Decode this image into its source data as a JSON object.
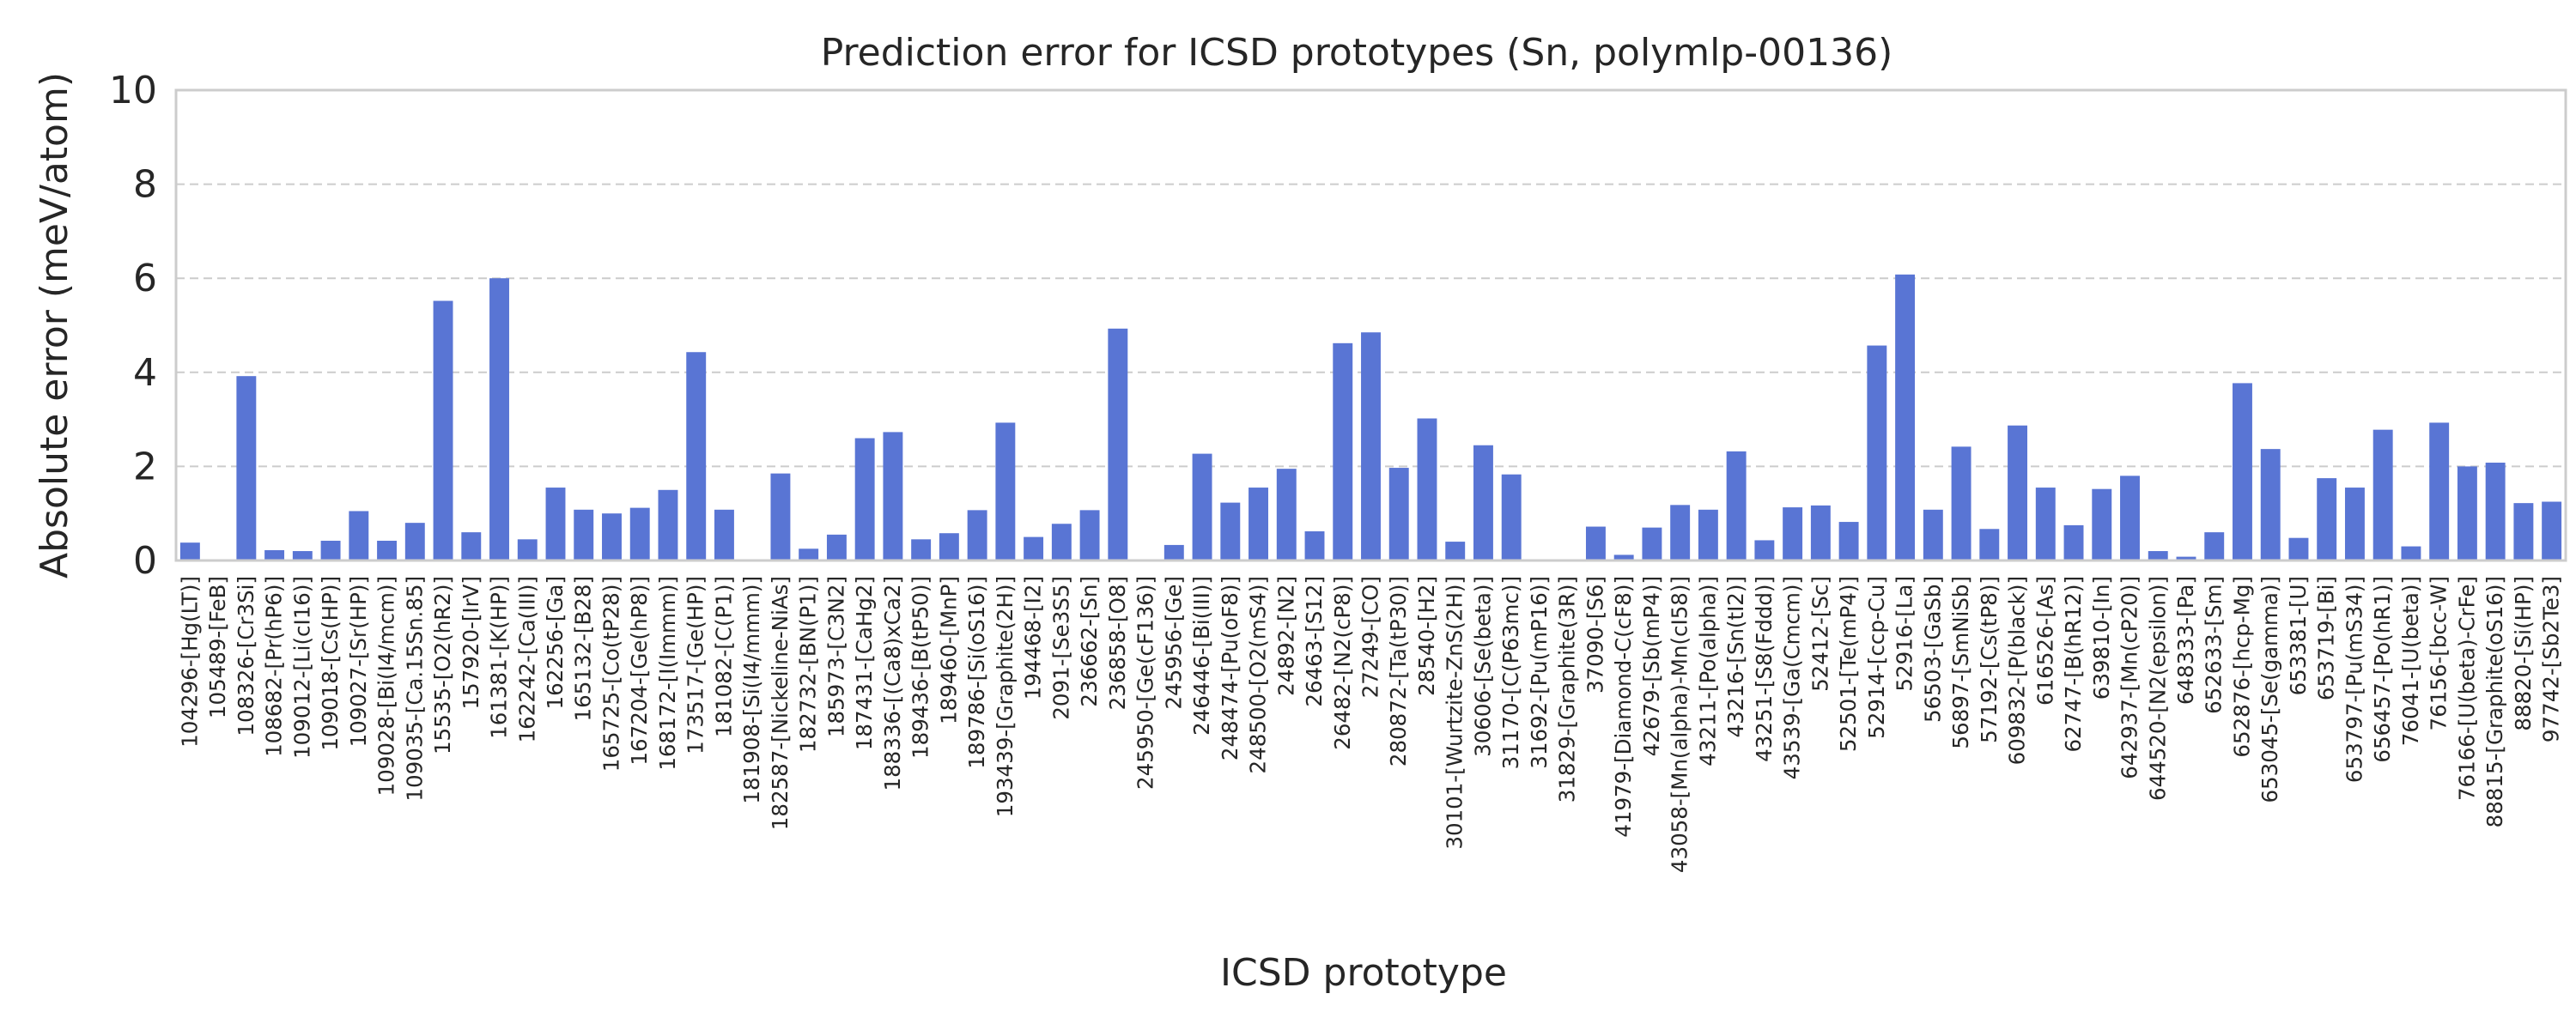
{
  "chart_data": {
    "type": "bar",
    "title": "Prediction error for ICSD prototypes (Sn, polymlp-00136)",
    "xlabel": "ICSD prototype",
    "ylabel": "Absolute error (meV/atom)",
    "ylim": [
      0,
      10
    ],
    "yticks": [
      "0",
      "2",
      "4",
      "6",
      "8",
      "10"
    ],
    "grid": true,
    "bar_color": "#5975d4",
    "grid_color": "#cccccc",
    "categories": [
      "104296-[Hg(LT)]",
      "105489-[FeB]",
      "108326-[Cr3Si]",
      "108682-[Pr(hP6)]",
      "109012-[Li(cI16)]",
      "109018-[Cs(HP)]",
      "109027-[Sr(HP)]",
      "109028-[Bi(I4/mcm)]",
      "109035-[Ca.15Sn.85]",
      "15535-[O2(hR2)]",
      "157920-[IrV]",
      "161381-[K(HP)]",
      "162242-[Ca(III)]",
      "162256-[Ga]",
      "165132-[B28]",
      "165725-[Co(tP28)]",
      "167204-[Ge(hP8)]",
      "168172-[I(Immm)]",
      "173517-[Ge(HP)]",
      "181082-[C(P1)]",
      "181908-[Si(I4/mmm)]",
      "182587-[Nickeline-NiAs]",
      "182732-[BN(P1)]",
      "185973-[C3N2]",
      "187431-[CaHg2]",
      "188336-[(Ca8)xCa2]",
      "189436-[B(tP50)]",
      "189460-[MnP]",
      "189786-[Si(oS16)]",
      "193439-[Graphite(2H)]",
      "194468-[I2]",
      "2091-[Se3S5]",
      "236662-[Sn]",
      "236858-[O8]",
      "245950-[Ge(cF136)]",
      "245956-[Ge]",
      "246446-[Bi(III)]",
      "248474-[Pu(oF8)]",
      "248500-[O2(mS4)]",
      "24892-[N2]",
      "26463-[S12]",
      "26482-[N2(cP8)]",
      "27249-[CO]",
      "280872-[Ta(tP30)]",
      "28540-[H2]",
      "30101-[Wurtzite-ZnS(2H)]",
      "30606-[Se(beta)]",
      "31170-[C(P63mc)]",
      "31692-[Pu(mP16)]",
      "31829-[Graphite(3R)]",
      "37090-[S6]",
      "41979-[Diamond-C(cF8)]",
      "42679-[Sb(mP4)]",
      "43058-[Mn(alpha)-Mn(cI58)]",
      "43211-[Po(alpha)]",
      "43216-[Sn(tI2)]",
      "43251-[S8(Fddd)]",
      "43539-[Ga(Cmcm)]",
      "52412-[Sc]",
      "52501-[Te(mP4)]",
      "52914-[ccp-Cu]",
      "52916-[La]",
      "56503-[GaSb]",
      "56897-[SmNiSb]",
      "57192-[Cs(tP8)]",
      "609832-[P(black)]",
      "616526-[As]",
      "62747-[B(hR12)]",
      "639810-[In]",
      "642937-[Mn(cP20)]",
      "644520-[N2(epsilon)]",
      "648333-[Pa]",
      "652633-[Sm]",
      "652876-[hcp-Mg]",
      "653045-[Se(gamma)]",
      "653381-[U]",
      "653719-[Bi]",
      "653797-[Pu(mS34)]",
      "656457-[Po(hR1)]",
      "76041-[U(beta)]",
      "76156-[bcc-W]",
      "76166-[U(beta)-CrFe]",
      "88815-[Graphite(oS16)]",
      "88820-[Si(HP)]",
      "97742-[Sb2Te3]"
    ],
    "values": [
      0.38,
      0.0,
      3.92,
      0.22,
      0.2,
      0.42,
      1.05,
      0.42,
      0.8,
      5.52,
      0.6,
      6.0,
      0.45,
      1.55,
      1.08,
      1.0,
      1.12,
      1.5,
      4.43,
      1.08,
      0.0,
      1.85,
      0.25,
      0.55,
      2.6,
      2.73,
      0.45,
      0.58,
      1.07,
      2.93,
      0.5,
      0.78,
      1.07,
      4.93,
      0.0,
      0.33,
      2.27,
      1.23,
      1.55,
      1.95,
      0.62,
      4.62,
      4.85,
      1.97,
      3.02,
      0.4,
      2.45,
      1.83,
      0.0,
      0.0,
      0.72,
      0.12,
      0.7,
      1.18,
      1.08,
      2.32,
      0.43,
      1.13,
      1.17,
      0.82,
      4.57,
      6.08,
      1.08,
      2.42,
      0.67,
      2.87,
      1.55,
      0.75,
      1.52,
      1.8,
      0.2,
      0.08,
      0.6,
      3.77,
      2.37,
      0.48,
      1.75,
      1.55,
      2.78,
      0.3,
      2.93,
      2.0,
      2.08,
      1.22,
      1.25
    ]
  }
}
